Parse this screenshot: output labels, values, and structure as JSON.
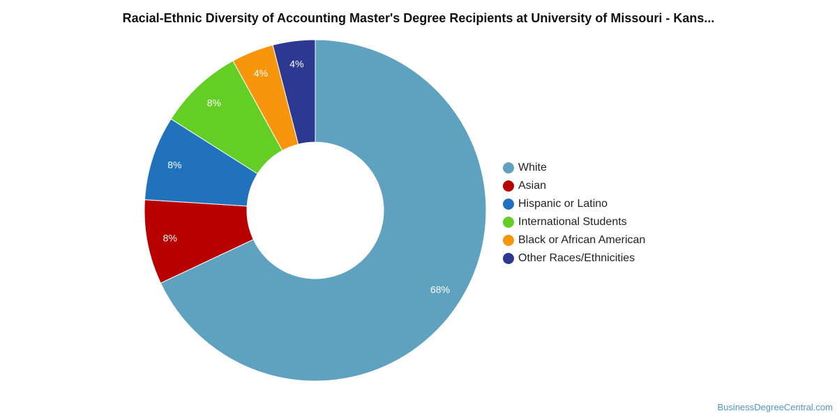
{
  "chart_data": {
    "type": "pie",
    "variant": "donut",
    "title": "Racial-Ethnic Diversity of Accounting Master's Degree Recipients at University of Missouri - Kans...",
    "categories": [
      "White",
      "Asian",
      "Hispanic or Latino",
      "International Students",
      "Black or African American",
      "Other Races/Ethnicities"
    ],
    "values": [
      68,
      8,
      8,
      8,
      4,
      4
    ],
    "labels": [
      "68%",
      "8%",
      "8%",
      "8%",
      "4%",
      "4%"
    ],
    "colors": [
      "#5ea2c0",
      "#b90000",
      "#1f72bb",
      "#63cf24",
      "#f7960c",
      "#2d3990"
    ],
    "legend_position": "right",
    "start": "12 o'clock",
    "direction": "clockwise"
  },
  "credit": "BusinessDegreeCentral.com"
}
